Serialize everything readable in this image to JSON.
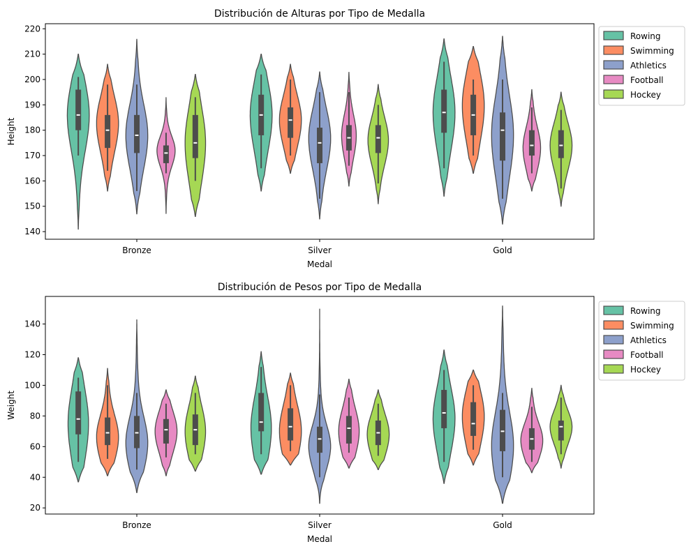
{
  "chart_data": [
    {
      "type": "violin",
      "title": "Distribución de Alturas por Tipo de Medalla",
      "xlabel": "Medal",
      "ylabel": "Height",
      "ylim": [
        137,
        222
      ],
      "yticks": [
        140,
        150,
        160,
        170,
        180,
        190,
        200,
        210,
        220
      ],
      "categories": [
        "Bronze",
        "Silver",
        "Gold"
      ],
      "legend_position": "outside-right-top",
      "grid": false,
      "series": [
        {
          "name": "Rowing",
          "color": "#66c2a5",
          "values": [
            {
              "min": 141,
              "max": 210,
              "q1": 180,
              "median": 186,
              "q3": 196,
              "whisker_low": 170,
              "whisker_high": 201,
              "width": 0.75,
              "mode": 186
            },
            {
              "min": 156,
              "max": 210,
              "q1": 178,
              "median": 186,
              "q3": 194,
              "whisker_low": 165,
              "whisker_high": 202,
              "width": 0.75,
              "mode": 186
            },
            {
              "min": 154,
              "max": 216,
              "q1": 179,
              "median": 187,
              "q3": 196,
              "whisker_low": 165,
              "whisker_high": 207,
              "width": 0.75,
              "mode": 187
            }
          ]
        },
        {
          "name": "Swimming",
          "color": "#fc8d62",
          "values": [
            {
              "min": 156,
              "max": 206,
              "q1": 173,
              "median": 180,
              "q3": 186,
              "whisker_low": 164,
              "whisker_high": 198,
              "width": 0.75,
              "mode": 183
            },
            {
              "min": 163,
              "max": 206,
              "q1": 177,
              "median": 184,
              "q3": 189,
              "whisker_low": 170,
              "whisker_high": 200,
              "width": 0.75,
              "mode": 184
            },
            {
              "min": 163,
              "max": 213,
              "q1": 178,
              "median": 186,
              "q3": 194,
              "whisker_low": 170,
              "whisker_high": 200,
              "width": 0.75,
              "mode": 190
            }
          ]
        },
        {
          "name": "Athletics",
          "color": "#8da0cb",
          "values": [
            {
              "min": 147,
              "max": 216,
              "q1": 171,
              "median": 178,
              "q3": 186,
              "whisker_low": 156,
              "whisker_high": 198,
              "width": 0.75,
              "mode": 178
            },
            {
              "min": 145,
              "max": 203,
              "q1": 167,
              "median": 175,
              "q3": 181,
              "whisker_low": 153,
              "whisker_high": 195,
              "width": 0.75,
              "mode": 177
            },
            {
              "min": 143,
              "max": 217,
              "q1": 168,
              "median": 180,
              "q3": 187,
              "whisker_low": 153,
              "whisker_high": 200,
              "width": 0.75,
              "mode": 178
            }
          ]
        },
        {
          "name": "Football",
          "color": "#e78ac3",
          "values": [
            {
              "min": 147,
              "max": 193,
              "q1": 167,
              "median": 171,
              "q3": 174,
              "whisker_low": 163,
              "whisker_high": 179,
              "width": 0.62,
              "mode": 172
            },
            {
              "min": 158,
              "max": 203,
              "q1": 172,
              "median": 177,
              "q3": 182,
              "whisker_low": 166,
              "whisker_high": 195,
              "width": 0.5,
              "mode": 178
            },
            {
              "min": 156,
              "max": 196,
              "q1": 170,
              "median": 174,
              "q3": 180,
              "whisker_low": 163,
              "whisker_high": 189,
              "width": 0.6,
              "mode": 173
            }
          ]
        },
        {
          "name": "Hockey",
          "color": "#a6d854",
          "values": [
            {
              "min": 146,
              "max": 202,
              "q1": 169,
              "median": 175,
              "q3": 186,
              "whisker_low": 160,
              "whisker_high": 193,
              "width": 0.7,
              "mode": 175
            },
            {
              "min": 151,
              "max": 198,
              "q1": 171,
              "median": 177,
              "q3": 182,
              "whisker_low": 159,
              "whisker_high": 190,
              "width": 0.7,
              "mode": 176
            },
            {
              "min": 150,
              "max": 195,
              "q1": 169,
              "median": 174,
              "q3": 180,
              "whisker_low": 157,
              "whisker_high": 188,
              "width": 0.75,
              "mode": 174
            }
          ]
        }
      ]
    },
    {
      "type": "violin",
      "title": "Distribución de Pesos por Tipo de Medalla",
      "xlabel": "Medal",
      "ylabel": "Weight",
      "ylim": [
        16,
        158
      ],
      "yticks": [
        20,
        40,
        60,
        80,
        100,
        120,
        140
      ],
      "categories": [
        "Bronze",
        "Silver",
        "Gold"
      ],
      "legend_position": "outside-right-top",
      "grid": false,
      "series": [
        {
          "name": "Rowing",
          "color": "#66c2a5",
          "values": [
            {
              "min": 37,
              "max": 118,
              "q1": 68,
              "median": 78,
              "q3": 96,
              "whisker_low": 50,
              "whisker_high": 105,
              "width": 0.7,
              "mode": 75
            },
            {
              "min": 42,
              "max": 122,
              "q1": 70,
              "median": 76,
              "q3": 95,
              "whisker_low": 55,
              "whisker_high": 112,
              "width": 0.7,
              "mode": 72
            },
            {
              "min": 36,
              "max": 123,
              "q1": 72,
              "median": 82,
              "q3": 97,
              "whisker_low": 50,
              "whisker_high": 110,
              "width": 0.75,
              "mode": 78
            }
          ]
        },
        {
          "name": "Swimming",
          "color": "#fc8d62",
          "values": [
            {
              "min": 41,
              "max": 111,
              "q1": 61,
              "median": 69,
              "q3": 79,
              "whisker_low": 52,
              "whisker_high": 100,
              "width": 0.75,
              "mode": 66
            },
            {
              "min": 48,
              "max": 108,
              "q1": 64,
              "median": 73,
              "q3": 85,
              "whisker_low": 57,
              "whisker_high": 100,
              "width": 0.75,
              "mode": 70
            },
            {
              "min": 48,
              "max": 110,
              "q1": 67,
              "median": 75,
              "q3": 89,
              "whisker_low": 58,
              "whisker_high": 100,
              "width": 0.75,
              "mode": 80
            }
          ]
        },
        {
          "name": "Athletics",
          "color": "#8da0cb",
          "values": [
            {
              "min": 30,
              "max": 143,
              "q1": 59,
              "median": 69,
              "q3": 80,
              "whisker_low": 45,
              "whisker_high": 95,
              "width": 0.75,
              "mode": 62
            },
            {
              "min": 23,
              "max": 150,
              "q1": 56,
              "median": 65,
              "q3": 73,
              "whisker_low": 40,
              "whisker_high": 94,
              "width": 0.75,
              "mode": 60
            },
            {
              "min": 23,
              "max": 152,
              "q1": 57,
              "median": 70,
              "q3": 84,
              "whisker_low": 40,
              "whisker_high": 95,
              "width": 0.75,
              "mode": 60
            }
          ]
        },
        {
          "name": "Football",
          "color": "#e78ac3",
          "values": [
            {
              "min": 41,
              "max": 97,
              "q1": 62,
              "median": 71,
              "q3": 78,
              "whisker_low": 53,
              "whisker_high": 88,
              "width": 0.75,
              "mode": 70
            },
            {
              "min": 46,
              "max": 104,
              "q1": 62,
              "median": 72,
              "q3": 80,
              "whisker_low": 56,
              "whisker_high": 92,
              "width": 0.7,
              "mode": 70
            },
            {
              "min": 43,
              "max": 98,
              "q1": 58,
              "median": 65,
              "q3": 72,
              "whisker_low": 50,
              "whisker_high": 86,
              "width": 0.75,
              "mode": 64
            }
          ]
        },
        {
          "name": "Hockey",
          "color": "#a6d854",
          "values": [
            {
              "min": 44,
              "max": 106,
              "q1": 61,
              "median": 71,
              "q3": 81,
              "whisker_low": 55,
              "whisker_high": 95,
              "width": 0.7,
              "mode": 70
            },
            {
              "min": 45,
              "max": 97,
              "q1": 61,
              "median": 69,
              "q3": 77,
              "whisker_low": 54,
              "whisker_high": 88,
              "width": 0.75,
              "mode": 68
            },
            {
              "min": 46,
              "max": 100,
              "q1": 64,
              "median": 73,
              "q3": 77,
              "whisker_low": 55,
              "whisker_high": 92,
              "width": 0.75,
              "mode": 73
            }
          ]
        }
      ]
    }
  ]
}
